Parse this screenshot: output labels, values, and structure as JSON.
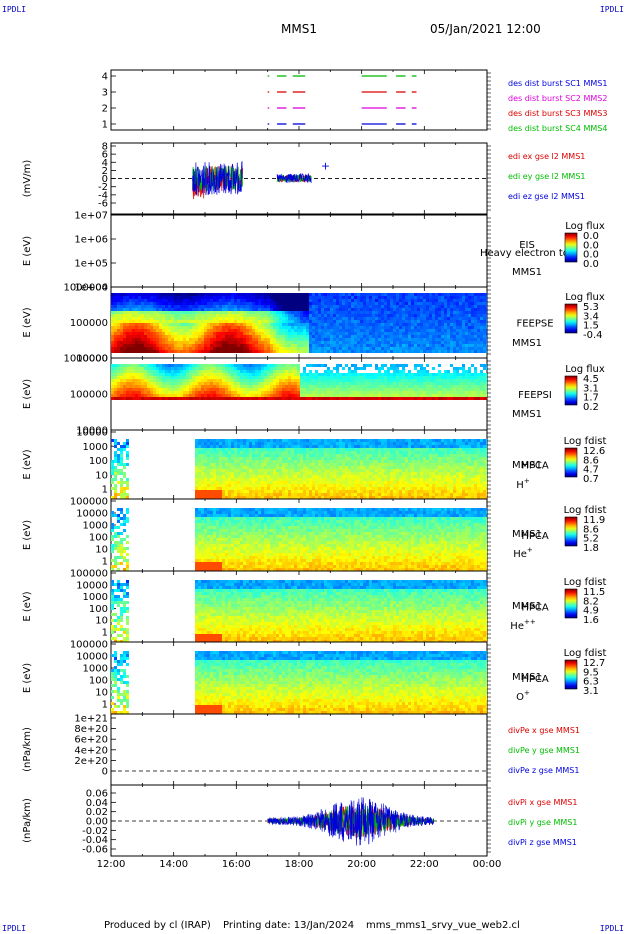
{
  "corner_label": "IPDLI",
  "title": "MMS1",
  "date_label": "05/Jan/2021 12:00",
  "footer": {
    "producer": "Produced by cl (IRAP)",
    "printing": "Printing date: 13/Jan/2024",
    "script": "mms_mms1_srvy_vue_web2.cl"
  },
  "colors": {
    "sc1": "#0000dd",
    "sc2": "#dd00dd",
    "sc3": "#dd0000",
    "sc4": "#00bb00"
  },
  "chart_data": {
    "type": "multi-panel",
    "x_ticks": [
      "12:00",
      "14:00",
      "16:00",
      "18:00",
      "20:00",
      "22:00",
      "00:00"
    ],
    "panels": [
      {
        "id": "burst",
        "type": "timeline",
        "yticks": [
          "4",
          "3",
          "2",
          "1"
        ],
        "ylabel": "",
        "legend": [
          {
            "text": "des dist burst SC1 MMS1",
            "color": "#0000dd"
          },
          {
            "text": "des dist burst SC2 MMS2",
            "color": "#dd00dd"
          },
          {
            "text": "des dist burst SC3 MMS3",
            "color": "#dd0000"
          },
          {
            "text": "des dist burst SC4 MMS4",
            "color": "#00bb00"
          }
        ],
        "rows": [
          {
            "level": 4,
            "color": "#00bb00",
            "segments": [
              [
                17.0,
                17.05
              ],
              [
                17.3,
                17.6
              ],
              [
                17.8,
                18.2
              ],
              [
                20.0,
                20.8
              ],
              [
                21.1,
                21.4
              ],
              [
                21.6,
                21.75
              ]
            ]
          },
          {
            "level": 3,
            "color": "#dd0000",
            "segments": [
              [
                17.0,
                17.05
              ],
              [
                17.3,
                17.6
              ],
              [
                17.8,
                18.2
              ],
              [
                20.0,
                20.8
              ],
              [
                21.1,
                21.4
              ],
              [
                21.6,
                21.75
              ]
            ]
          },
          {
            "level": 2,
            "color": "#dd00dd",
            "segments": [
              [
                17.0,
                17.05
              ],
              [
                17.3,
                17.6
              ],
              [
                17.8,
                18.2
              ],
              [
                20.0,
                20.8
              ],
              [
                21.1,
                21.4
              ],
              [
                21.6,
                21.75
              ]
            ]
          },
          {
            "level": 1,
            "color": "#0000dd",
            "segments": [
              [
                17.0,
                17.05
              ],
              [
                17.3,
                17.6
              ],
              [
                17.8,
                18.2
              ],
              [
                20.0,
                20.8
              ],
              [
                21.1,
                21.4
              ],
              [
                21.6,
                21.75
              ]
            ]
          }
        ]
      },
      {
        "id": "edi",
        "type": "line",
        "ylabel": "(mV/m)",
        "yticks": [
          "8",
          "6",
          "4",
          "2",
          "0",
          "-2",
          "-4",
          "-6"
        ],
        "legend": [
          {
            "text": "edi ex gse l2 MMS1",
            "color": "#dd0000"
          },
          {
            "text": "edi ey gse l2 MMS1",
            "color": "#00bb00"
          },
          {
            "text": "edi ez gse l2 MMS1",
            "color": "#0000dd"
          }
        ]
      },
      {
        "id": "eis",
        "type": "spectrogram",
        "ylabel": "E (eV)",
        "yticks": [
          "1e+07",
          "1e+06",
          "1e+05",
          "1e+04"
        ],
        "instrument": "EIS",
        "probe": "MMS1",
        "legend_extra": "Heavy electron to",
        "cbar_title": "Log flux",
        "cbar_values": [
          "0.0",
          "0.0",
          "0.0",
          "0.0"
        ]
      },
      {
        "id": "feepse",
        "type": "spectrogram",
        "ylabel": "E (eV)",
        "yticks": [
          "1000000",
          "100000",
          "10000"
        ],
        "instrument": "FEEPSE",
        "probe": "MMS1",
        "cbar_title": "Log flux",
        "cbar_values": [
          "5.3",
          "3.4",
          "1.5",
          "-0.4"
        ]
      },
      {
        "id": "feepsi",
        "type": "spectrogram",
        "ylabel": "E (eV)",
        "yticks": [
          "1000000",
          "100000",
          "10000"
        ],
        "instrument": "FEEPSI",
        "probe": "MMS1",
        "cbar_title": "Log flux",
        "cbar_values": [
          "4.5",
          "3.1",
          "1.7",
          "0.2"
        ]
      },
      {
        "id": "hpca_h",
        "type": "spectrogram",
        "ylabel": "E (eV)",
        "yticks": [
          "10000",
          "1000",
          "100",
          "10",
          "1"
        ],
        "instrument": "HPCA",
        "probe": "MMS1",
        "species_base": "H",
        "species_sup": "+",
        "cbar_title": "Log fdist",
        "cbar_values": [
          "12.6",
          "8.6",
          "4.7",
          "0.7"
        ]
      },
      {
        "id": "hpca_he1",
        "type": "spectrogram",
        "ylabel": "E (eV)",
        "yticks": [
          "100000",
          "10000",
          "1000",
          "100",
          "10",
          "1"
        ],
        "instrument": "HPCA",
        "probe": "MMS1",
        "species_base": "He",
        "species_sup": "+",
        "cbar_title": "Log fdist",
        "cbar_values": [
          "11.9",
          "8.6",
          "5.2",
          "1.8"
        ]
      },
      {
        "id": "hpca_he2",
        "type": "spectrogram",
        "ylabel": "E (eV)",
        "yticks": [
          "100000",
          "10000",
          "1000",
          "100",
          "10",
          "1"
        ],
        "instrument": "HPCA",
        "probe": "MMS1",
        "species_base": "He",
        "species_sup": "++",
        "cbar_title": "Log fdist",
        "cbar_values": [
          "11.5",
          "8.2",
          "4.9",
          "1.6"
        ]
      },
      {
        "id": "hpca_o",
        "type": "spectrogram",
        "ylabel": "E (eV)",
        "yticks": [
          "100000",
          "10000",
          "1000",
          "100",
          "10",
          "1"
        ],
        "instrument": "HPCA",
        "probe": "MMS1",
        "species_base": "O",
        "species_sup": "+",
        "cbar_title": "Log fdist",
        "cbar_values": [
          "12.7",
          "9.5",
          "6.3",
          "3.1"
        ]
      },
      {
        "id": "divpe",
        "type": "line",
        "ylabel": "(nPa/km)",
        "yticks": [
          "1e+21",
          "8e+20",
          "6e+20",
          "4e+20",
          "2e+20",
          "0"
        ],
        "legend": [
          {
            "text": "divPe x gse MMS1",
            "color": "#dd0000"
          },
          {
            "text": "divPe y gse MMS1",
            "color": "#00bb00"
          },
          {
            "text": "divPe z gse MMS1",
            "color": "#0000dd"
          }
        ]
      },
      {
        "id": "divpi",
        "type": "line",
        "ylabel": "(nPa/km)",
        "yticks": [
          "0.06",
          "0.04",
          "0.02",
          "0.00",
          "-0.02",
          "-0.04",
          "-0.06"
        ],
        "legend": [
          {
            "text": "divPi x gse MMS1",
            "color": "#dd0000"
          },
          {
            "text": "divPi y gse MMS1",
            "color": "#00bb00"
          },
          {
            "text": "divPi z gse MMS1",
            "color": "#0000dd"
          }
        ]
      }
    ]
  }
}
